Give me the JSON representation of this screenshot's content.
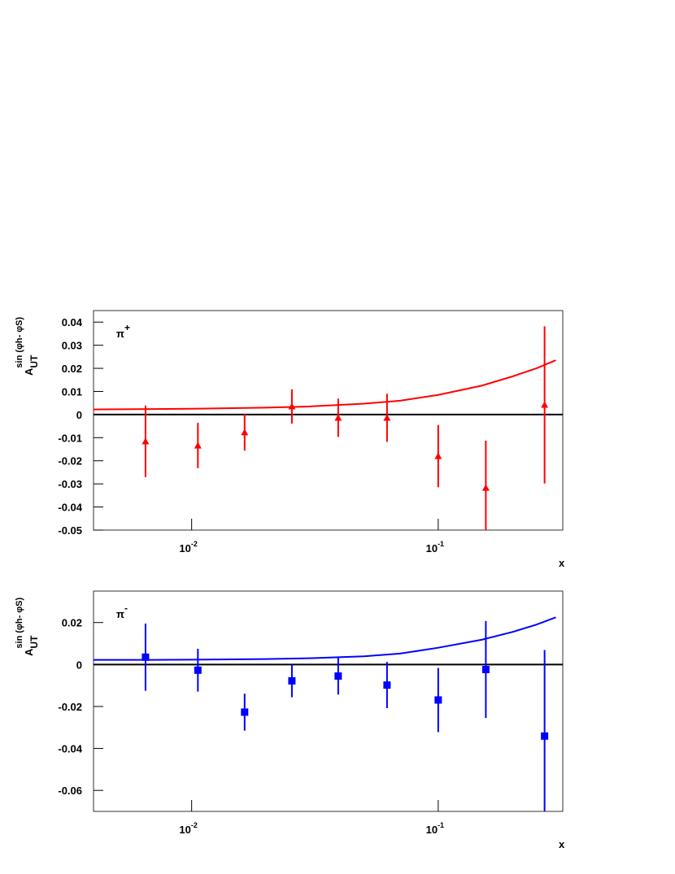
{
  "chart_data": [
    {
      "type": "scatter",
      "annotation": "π",
      "annotation_sup": "+",
      "ylabel": "A",
      "ylabel_sub": "UT",
      "ylabel_sup": "sin (φh- φS)",
      "xlabel": "x",
      "log_x": true,
      "xlim": [
        0.004,
        0.32
      ],
      "xticks": [
        {
          "value": 0.01,
          "label": "10",
          "exponent": "-2"
        },
        {
          "value": 0.1,
          "label": "10",
          "exponent": "-1"
        }
      ],
      "ylim": [
        -0.05,
        0.045
      ],
      "yticks": [
        -0.05,
        -0.04,
        -0.03,
        -0.02,
        -0.01,
        0,
        0.01,
        0.02,
        0.03,
        0.04
      ],
      "zero_line": 0,
      "points": {
        "color": "#ff0000",
        "marker": "triangle",
        "x": [
          0.0065,
          0.0106,
          0.0164,
          0.0255,
          0.0393,
          0.062,
          0.1,
          0.156,
          0.27
        ],
        "values": [
          -0.0116,
          -0.0134,
          -0.0077,
          0.0035,
          -0.0014,
          -0.0014,
          -0.018,
          -0.0317,
          0.0042
        ],
        "errors": [
          0.0155,
          0.0098,
          0.0079,
          0.0074,
          0.0083,
          0.0104,
          0.0135,
          0.0204,
          0.034
        ]
      },
      "curve": {
        "color": "#ff0000",
        "x": [
          0.004,
          0.007,
          0.01,
          0.02,
          0.03,
          0.05,
          0.07,
          0.1,
          0.15,
          0.2,
          0.25,
          0.3
        ],
        "values": [
          0.0022,
          0.0024,
          0.0025,
          0.003,
          0.0035,
          0.0047,
          0.006,
          0.0085,
          0.0125,
          0.0165,
          0.02,
          0.0235
        ]
      }
    },
    {
      "type": "scatter",
      "annotation": "π",
      "annotation_sup": "-",
      "ylabel": "A",
      "ylabel_sub": "UT",
      "ylabel_sup": "sin (φh- φS)",
      "xlabel": "x",
      "log_x": true,
      "xlim": [
        0.004,
        0.32
      ],
      "xticks": [
        {
          "value": 0.01,
          "label": "10",
          "exponent": "-2"
        },
        {
          "value": 0.1,
          "label": "10",
          "exponent": "-1"
        }
      ],
      "ylim": [
        -0.07,
        0.035
      ],
      "yticks": [
        -0.06,
        -0.04,
        -0.02,
        0,
        0.02
      ],
      "zero_line": 0,
      "points": {
        "color": "#0000ff",
        "marker": "square",
        "x": [
          0.0065,
          0.0106,
          0.0164,
          0.0255,
          0.0393,
          0.062,
          0.1,
          0.156,
          0.27
        ],
        "values": [
          0.0035,
          -0.0027,
          -0.0227,
          -0.0078,
          -0.0055,
          -0.0098,
          -0.0169,
          -0.0024,
          -0.0341
        ],
        "errors": [
          0.016,
          0.0102,
          0.0088,
          0.0078,
          0.0088,
          0.011,
          0.0153,
          0.0231,
          0.041
        ]
      },
      "curve": {
        "color": "#0000ff",
        "x": [
          0.004,
          0.007,
          0.01,
          0.02,
          0.03,
          0.05,
          0.07,
          0.1,
          0.15,
          0.2,
          0.25,
          0.3
        ],
        "values": [
          0.0022,
          0.0022,
          0.0023,
          0.0026,
          0.003,
          0.0039,
          0.0052,
          0.008,
          0.0118,
          0.0155,
          0.019,
          0.0225
        ]
      }
    }
  ]
}
